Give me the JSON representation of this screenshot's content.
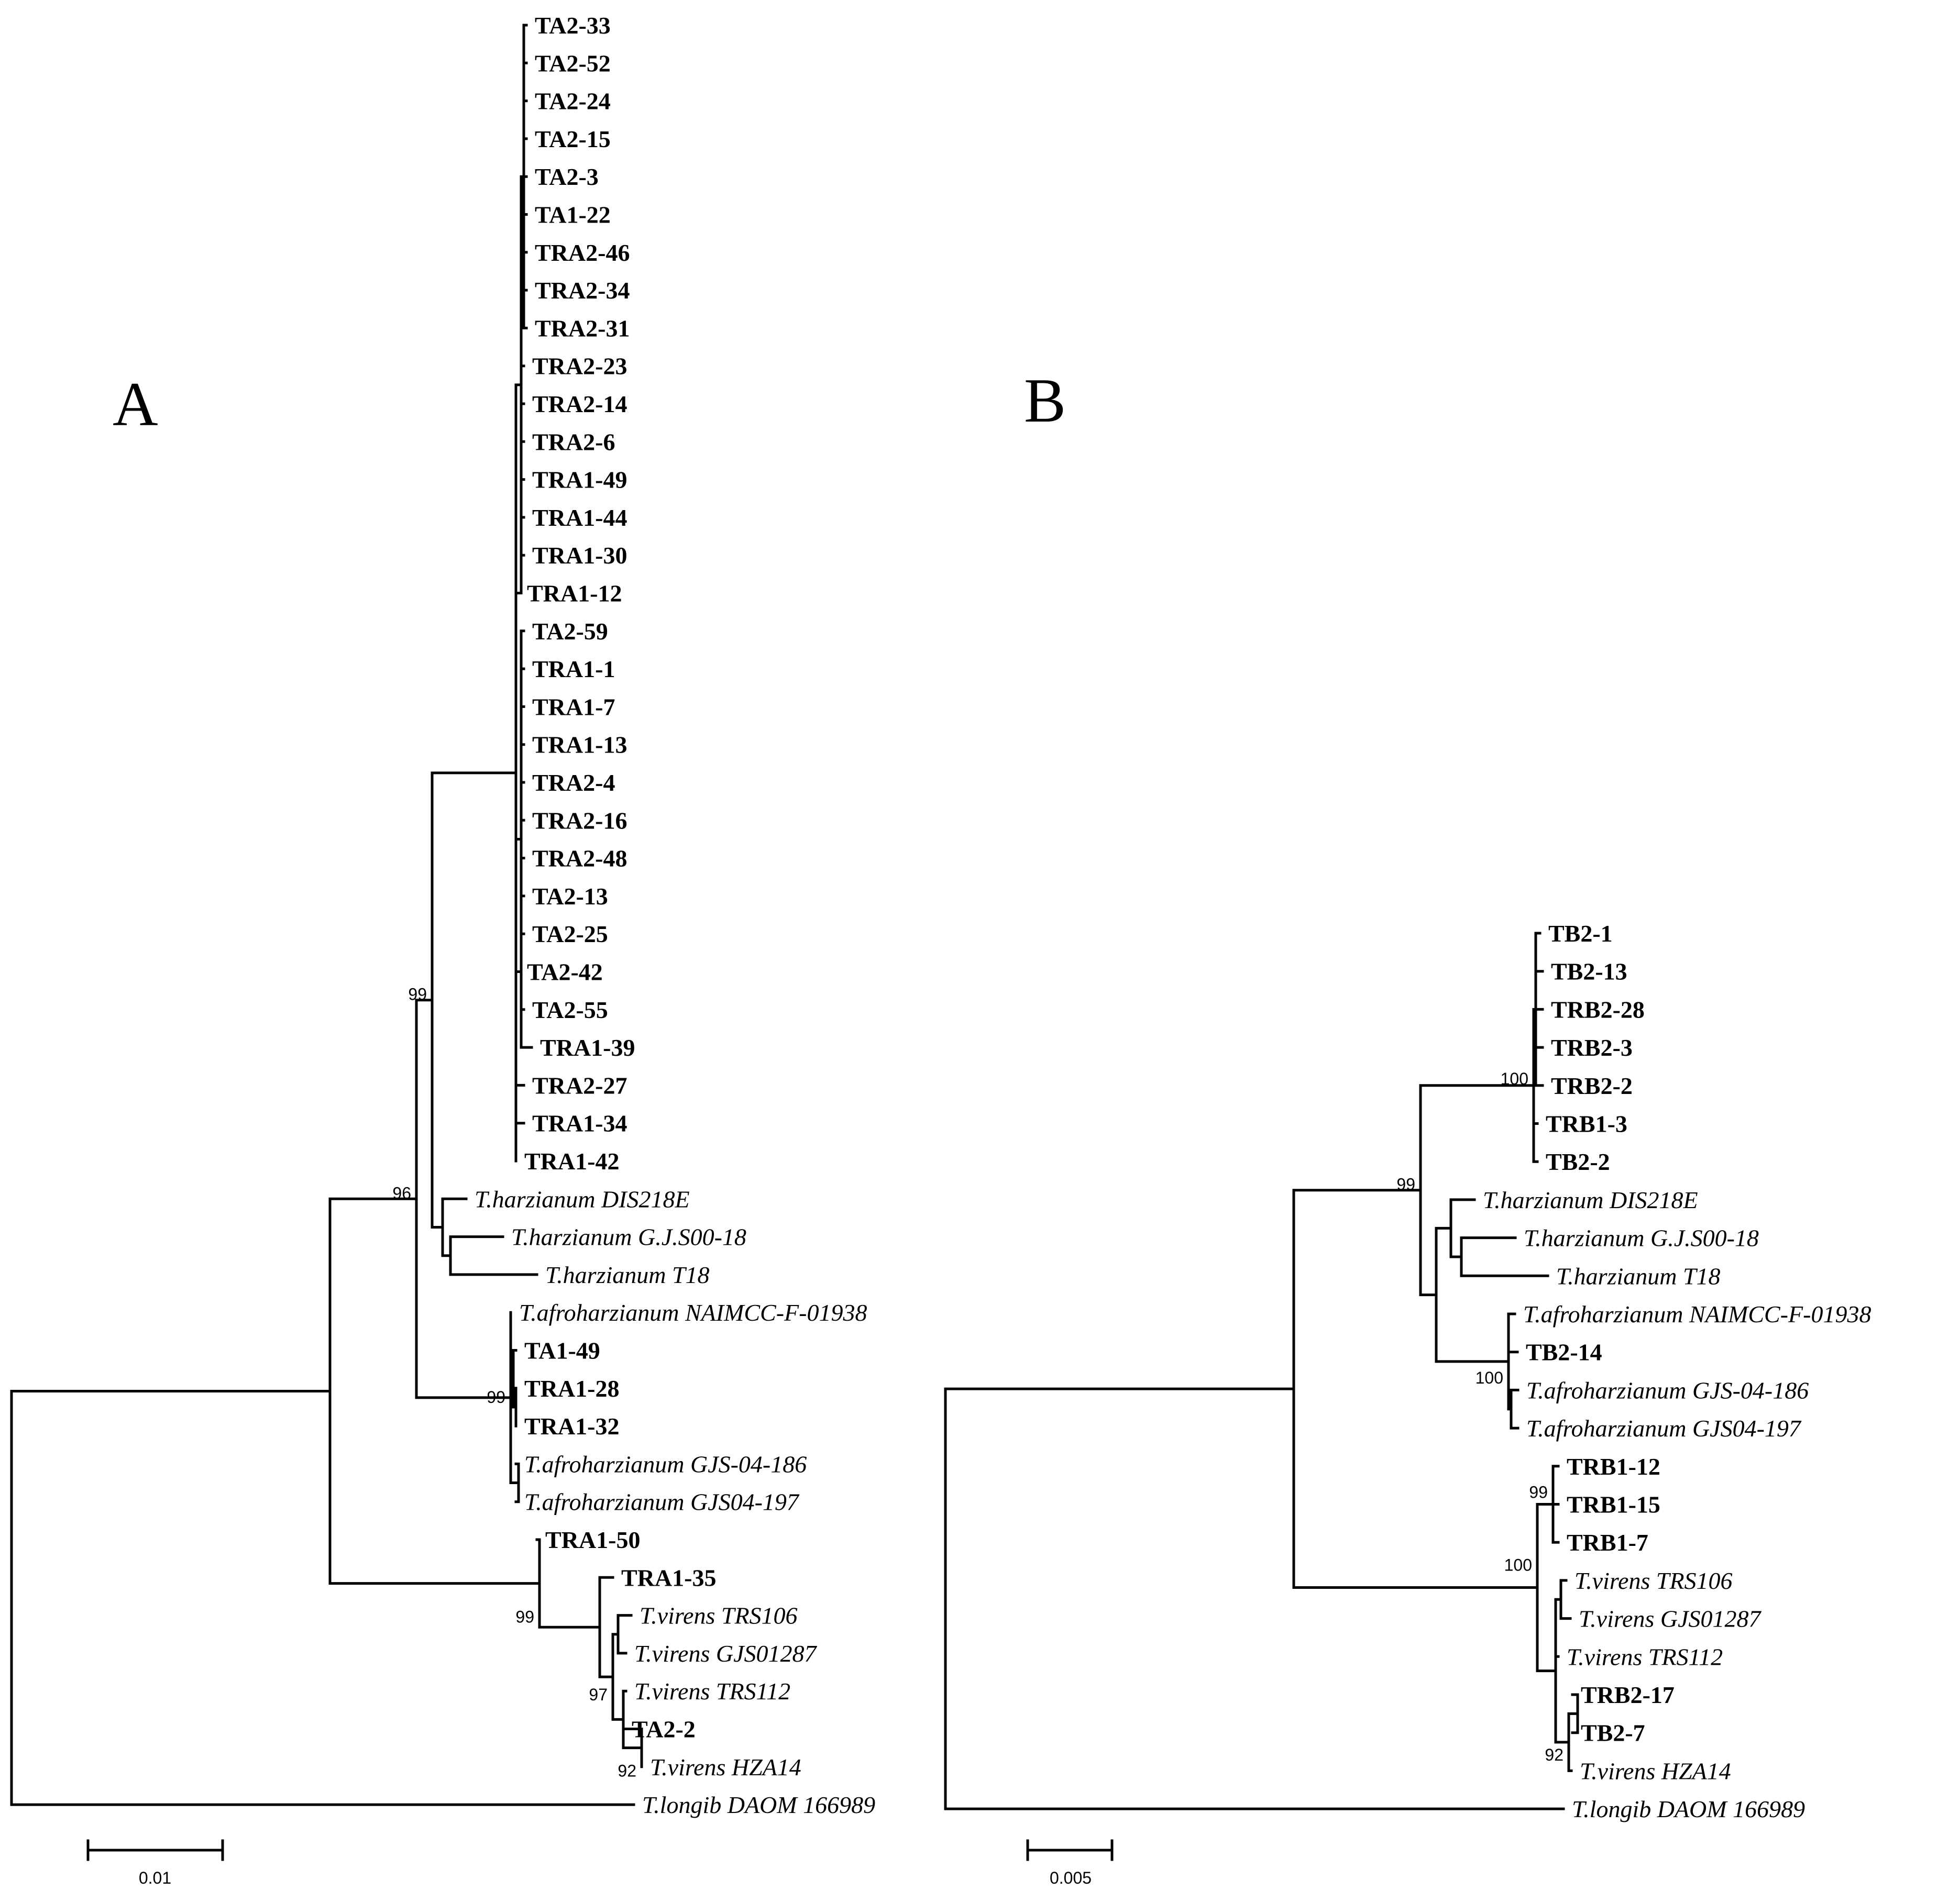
{
  "panels": {
    "A": {
      "letter": "A",
      "scale_label": "0.01",
      "taxa": [
        {
          "n": "TA2-33",
          "s": "b"
        },
        {
          "n": "TA2-52",
          "s": "b"
        },
        {
          "n": "TA2-24",
          "s": "b"
        },
        {
          "n": "TA2-15",
          "s": "b"
        },
        {
          "n": "TA2-3",
          "s": "b"
        },
        {
          "n": "TA1-22",
          "s": "b"
        },
        {
          "n": "TRA2-46",
          "s": "b"
        },
        {
          "n": "TRA2-34",
          "s": "b"
        },
        {
          "n": "TRA2-31",
          "s": "b"
        },
        {
          "n": "TRA2-23",
          "s": "b"
        },
        {
          "n": "TRA2-14",
          "s": "b"
        },
        {
          "n": "TRA2-6",
          "s": "b"
        },
        {
          "n": "TRA1-49",
          "s": "b"
        },
        {
          "n": "TRA1-44",
          "s": "b"
        },
        {
          "n": "TRA1-30",
          "s": "b"
        },
        {
          "n": "TRA1-12",
          "s": "b"
        },
        {
          "n": "TA2-59",
          "s": "b"
        },
        {
          "n": "TRA1-1",
          "s": "b"
        },
        {
          "n": "TRA1-7",
          "s": "b"
        },
        {
          "n": "TRA1-13",
          "s": "b"
        },
        {
          "n": "TRA2-4",
          "s": "b"
        },
        {
          "n": "TRA2-16",
          "s": "b"
        },
        {
          "n": "TRA2-48",
          "s": "b"
        },
        {
          "n": "TA2-13",
          "s": "b"
        },
        {
          "n": "TA2-25",
          "s": "b"
        },
        {
          "n": "TA2-42",
          "s": "b"
        },
        {
          "n": "TA2-55",
          "s": "b"
        },
        {
          "n": "TRA1-39",
          "s": "b"
        },
        {
          "n": "TRA2-27",
          "s": "b"
        },
        {
          "n": "TRA1-34",
          "s": "b"
        },
        {
          "n": "TRA1-42",
          "s": "b"
        },
        {
          "n": "T.harzianum DIS218E",
          "s": "i"
        },
        {
          "n": "T.harzianum G.J.S00-18",
          "s": "i"
        },
        {
          "n": "T.harzianum T18",
          "s": "i"
        },
        {
          "n": "T.afroharzianum NAIMCC-F-01938",
          "s": "i"
        },
        {
          "n": "TA1-49",
          "s": "b"
        },
        {
          "n": "TRA1-28",
          "s": "b"
        },
        {
          "n": "TRA1-32",
          "s": "b"
        },
        {
          "n": "T.afroharzianum GJS-04-186",
          "s": "i"
        },
        {
          "n": "T.afroharzianum GJS04-197",
          "s": "i"
        },
        {
          "n": "TRA1-50",
          "s": "b"
        },
        {
          "n": "TRA1-35",
          "s": "b"
        },
        {
          "n": "T.virens TRS106",
          "s": "i"
        },
        {
          "n": "T.virens GJS01287",
          "s": "i"
        },
        {
          "n": "T.virens  TRS112",
          "s": "i"
        },
        {
          "n": "TA2-2",
          "s": "b"
        },
        {
          "n": "T.virens  HZA14",
          "s": "i"
        },
        {
          "n": "T.longib DAOM 166989",
          "s": "i"
        }
      ],
      "bootstrap": [
        "99",
        "96",
        "99",
        "99",
        "97",
        "92"
      ]
    },
    "B": {
      "letter": "B",
      "scale_label": "0.005",
      "taxa": [
        {
          "n": "TB2-1",
          "s": "b"
        },
        {
          "n": "TB2-13",
          "s": "b"
        },
        {
          "n": "TRB2-28",
          "s": "b"
        },
        {
          "n": "TRB2-3",
          "s": "b"
        },
        {
          "n": "TRB2-2",
          "s": "b"
        },
        {
          "n": "TRB1-3",
          "s": "b"
        },
        {
          "n": "TB2-2",
          "s": "b"
        },
        {
          "n": "T.harzianum DIS218E",
          "s": "i"
        },
        {
          "n": "T.harzianum G.J.S00-18",
          "s": "i"
        },
        {
          "n": "T.harzianum T18",
          "s": "i"
        },
        {
          "n": "T.afroharzianum NAIMCC-F-01938",
          "s": "i"
        },
        {
          "n": "TB2-14",
          "s": "b"
        },
        {
          "n": "T.afroharzianum GJS-04-186",
          "s": "i"
        },
        {
          "n": "T.afroharzianum GJS04-197",
          "s": "i"
        },
        {
          "n": "TRB1-12",
          "s": "b"
        },
        {
          "n": "TRB1-15",
          "s": "b"
        },
        {
          "n": "TRB1-7",
          "s": "b"
        },
        {
          "n": "T.virens TRS106",
          "s": "i"
        },
        {
          "n": "T.virens GJS01287",
          "s": "i"
        },
        {
          "n": "T.virens TRS112",
          "s": "i"
        },
        {
          "n": "TRB2-17",
          "s": "b"
        },
        {
          "n": "TB2-7",
          "s": "b"
        },
        {
          "n": "T.virens HZA14",
          "s": "i"
        },
        {
          "n": "T.longib DAOM 166989",
          "s": "i"
        }
      ],
      "bootstrap": [
        "100",
        "99",
        "100",
        "99",
        "100",
        "92"
      ]
    }
  }
}
